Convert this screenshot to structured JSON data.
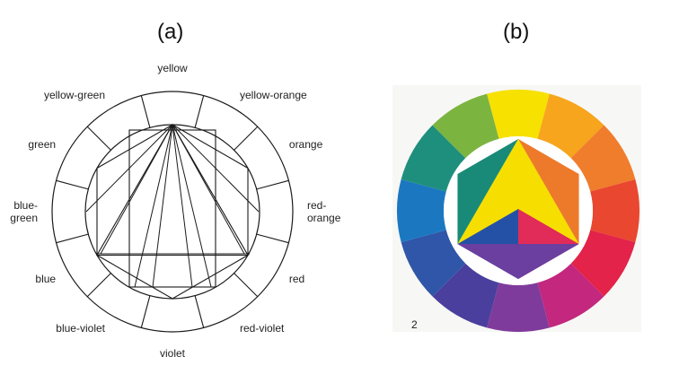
{
  "panels": {
    "a": {
      "label": "(a)"
    },
    "b": {
      "label": "(b)",
      "plate_number": "2"
    }
  },
  "wheel_a": {
    "segments": [
      {
        "key": "yellow",
        "label": [
          "yellow"
        ]
      },
      {
        "key": "yellow-orange",
        "label": [
          "yellow-orange"
        ]
      },
      {
        "key": "orange",
        "label": [
          "orange"
        ]
      },
      {
        "key": "red-orange",
        "label": [
          "red-",
          "orange"
        ]
      },
      {
        "key": "red",
        "label": [
          "red"
        ]
      },
      {
        "key": "red-violet",
        "label": [
          "red-violet"
        ]
      },
      {
        "key": "violet",
        "label": [
          "violet"
        ]
      },
      {
        "key": "blue-violet",
        "label": [
          "blue-violet"
        ]
      },
      {
        "key": "blue",
        "label": [
          "blue"
        ]
      },
      {
        "key": "blue-green",
        "label": [
          "blue-",
          "green"
        ]
      },
      {
        "key": "green",
        "label": [
          "green"
        ]
      },
      {
        "key": "yellow-green",
        "label": [
          "yellow-green"
        ]
      }
    ],
    "line_color": "#1a1a1a"
  },
  "wheel_b": {
    "ring_colors": [
      "#f6e100",
      "#f7a51d",
      "#ef7d2c",
      "#e9472f",
      "#e32349",
      "#c3277e",
      "#7f3b9b",
      "#4a3f9d",
      "#2f56a8",
      "#1b78c0",
      "#1f8f7d",
      "#7cb440"
    ],
    "center": {
      "top_triangle": "#f6df00",
      "left_triangle": "#2451a6",
      "right_triangle": "#e12b58",
      "bottom_triangle": "#6a3fa0",
      "upper_left": "#198a78",
      "upper_right": "#ed7a2a",
      "lower_left": "#275aaa",
      "lower_right": "#c32a78"
    },
    "background": "#f7f7f5"
  }
}
